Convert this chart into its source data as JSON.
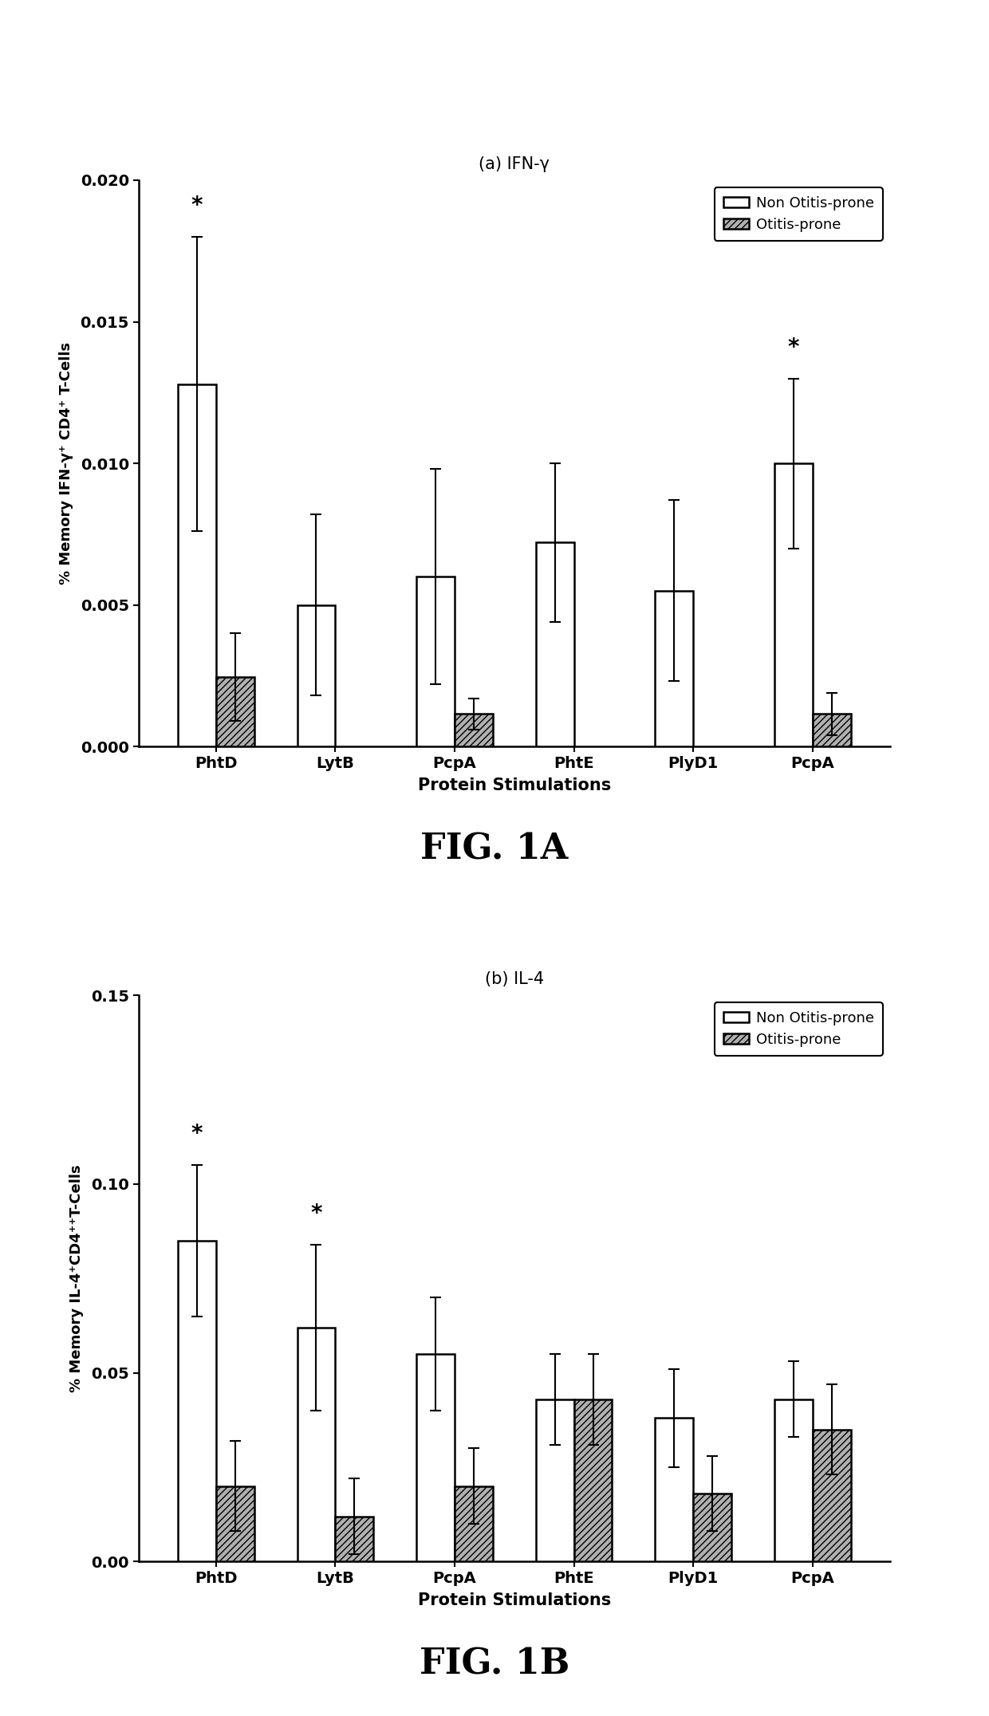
{
  "fig1a": {
    "title": "(a) IFN-γ",
    "ylabel": "% Memory IFN-γ⁺ CD4⁺ T-Cells",
    "xlabel": "Protein Stimulations",
    "categories": [
      "PhtD",
      "LytB",
      "PcpA",
      "PhtE",
      "PlyD1",
      "PcpA"
    ],
    "non_otitis": [
      0.0128,
      0.005,
      0.006,
      0.0072,
      0.0055,
      0.01
    ],
    "non_otitis_err": [
      0.0052,
      0.0032,
      0.0038,
      0.0028,
      0.0032,
      0.003
    ],
    "otitis": [
      0.00245,
      null,
      0.00115,
      null,
      null,
      0.00115
    ],
    "otitis_err": [
      0.00155,
      null,
      0.00055,
      null,
      null,
      0.00075
    ],
    "ylim": [
      0,
      0.02
    ],
    "yticks": [
      0.0,
      0.005,
      0.01,
      0.015,
      0.02
    ],
    "ytick_labels": [
      "0.000",
      "0.005",
      "0.010",
      "0.015",
      "0.020"
    ],
    "significance_non": [
      0,
      5
    ],
    "figname": "FIG. 1A"
  },
  "fig1b": {
    "title": "(b) IL-4",
    "ylabel": "% Memory IL-4⁺CD4⁺⁺T-Cells",
    "xlabel": "Protein Stimulations",
    "categories": [
      "PhtD",
      "LytB",
      "PcpA",
      "PhtE",
      "PlyD1",
      "PcpA"
    ],
    "non_otitis": [
      0.085,
      0.062,
      0.055,
      0.043,
      0.038,
      0.043
    ],
    "non_otitis_err": [
      0.02,
      0.022,
      0.015,
      0.012,
      0.013,
      0.01
    ],
    "otitis": [
      0.02,
      0.012,
      0.02,
      0.043,
      0.018,
      0.035
    ],
    "otitis_err": [
      0.012,
      0.01,
      0.01,
      0.012,
      0.01,
      0.012
    ],
    "ylim": [
      0,
      0.15
    ],
    "yticks": [
      0.0,
      0.05,
      0.1,
      0.15
    ],
    "ytick_labels": [
      "0.00",
      "0.05",
      "0.10",
      "0.15"
    ],
    "significance_non": [
      0,
      1
    ],
    "figname": "FIG. 1B"
  },
  "bar_width": 0.32,
  "non_otitis_color": "#ffffff",
  "non_otitis_edge": "#000000",
  "otitis_color": "#b0b0b0",
  "otitis_hatch": "////",
  "otitis_edge": "#000000",
  "legend_non": "Non Otitis-prone",
  "legend_otitis": "Otitis-prone",
  "background": "#ffffff"
}
